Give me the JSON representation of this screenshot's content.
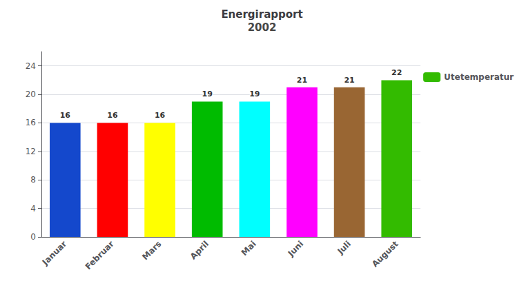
{
  "chart_data": {
    "type": "bar",
    "title": "Energirapport",
    "subtitle": "2002",
    "categories": [
      "Januar",
      "Februar",
      "Mars",
      "April",
      "Mai",
      "Juni",
      "Juli",
      "August"
    ],
    "series": [
      {
        "name": "Utetemperatur",
        "color": "#33BB00",
        "values": [
          16,
          16,
          16,
          19,
          19,
          21,
          21,
          22
        ]
      }
    ],
    "colors": [
      "#1448CC",
      "#FF0000",
      "#FFFF00",
      "#00BB00",
      "#00FFFF",
      "#FF00FF",
      "#996633",
      "#33BB00"
    ],
    "ylim": [
      0,
      26
    ],
    "yticks": [
      0,
      4,
      8,
      12,
      16,
      20,
      24
    ],
    "grid": true,
    "legend": "right",
    "data_labels": true
  }
}
